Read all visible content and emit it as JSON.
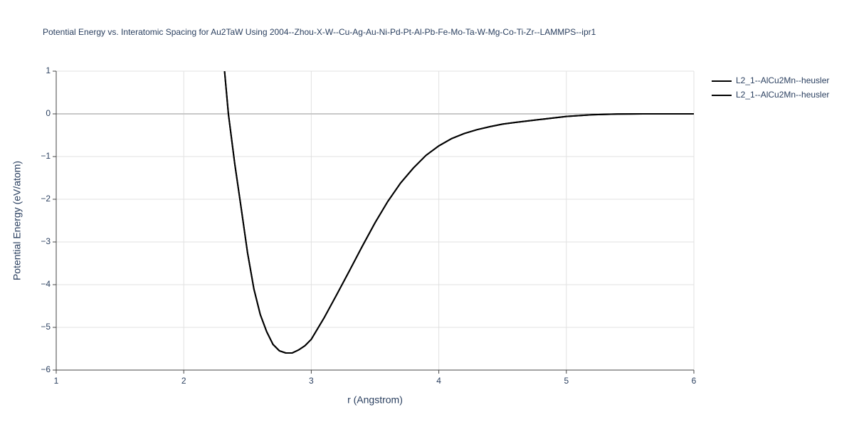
{
  "chart_data": {
    "type": "line",
    "title": "Potential Energy vs. Interatomic Spacing for Au2TaW Using 2004--Zhou-X-W--Cu-Ag-Au-Ni-Pd-Pt-Al-Pb-Fe-Mo-Ta-W-Mg-Co-Ti-Zr--LAMMPS--ipr1",
    "x_label": "r (Angstrom)",
    "y_label": "Potential Energy (eV/atom)",
    "x": [
      2.32,
      2.35,
      2.4,
      2.45,
      2.5,
      2.55,
      2.6,
      2.65,
      2.7,
      2.75,
      2.8,
      2.85,
      2.9,
      2.95,
      3.0,
      3.1,
      3.2,
      3.3,
      3.4,
      3.5,
      3.6,
      3.7,
      3.8,
      3.9,
      4.0,
      4.1,
      4.2,
      4.3,
      4.4,
      4.5,
      4.6,
      4.8,
      5.0,
      5.2,
      5.4,
      5.6,
      5.8,
      6.0
    ],
    "series": [
      {
        "name": "L2_1--AlCu2Mn--heusler",
        "color": "#000000",
        "values": [
          1.0,
          0.0,
          -1.17,
          -2.2,
          -3.25,
          -4.1,
          -4.7,
          -5.1,
          -5.4,
          -5.55,
          -5.6,
          -5.6,
          -5.53,
          -5.43,
          -5.28,
          -4.78,
          -4.23,
          -3.67,
          -3.1,
          -2.55,
          -2.05,
          -1.62,
          -1.27,
          -0.97,
          -0.75,
          -0.58,
          -0.46,
          -0.37,
          -0.3,
          -0.24,
          -0.2,
          -0.13,
          -0.06,
          -0.02,
          -0.005,
          0,
          0,
          0
        ]
      },
      {
        "name": "L2_1--AlCu2Mn--heusler",
        "color": "#000000",
        "values": [
          1.0,
          0.0,
          -1.17,
          -2.2,
          -3.25,
          -4.1,
          -4.7,
          -5.1,
          -5.4,
          -5.55,
          -5.6,
          -5.6,
          -5.53,
          -5.43,
          -5.28,
          -4.78,
          -4.23,
          -3.67,
          -3.1,
          -2.55,
          -2.05,
          -1.62,
          -1.27,
          -0.97,
          -0.75,
          -0.58,
          -0.46,
          -0.37,
          -0.3,
          -0.24,
          -0.2,
          -0.13,
          -0.06,
          -0.02,
          -0.005,
          0,
          0,
          0
        ]
      }
    ],
    "xlim": [
      1,
      6
    ],
    "ylim": [
      -6,
      1
    ],
    "xticks": [
      1,
      2,
      3,
      4,
      5,
      6
    ],
    "yticks": [
      1,
      0,
      {
        "value": -1,
        "label": "−1"
      },
      {
        "value": -2,
        "label": "−2"
      },
      {
        "value": -3,
        "label": "−3"
      },
      {
        "value": -4,
        "label": "−4"
      },
      {
        "value": -5,
        "label": "−5"
      },
      {
        "value": -6,
        "label": "−6"
      }
    ],
    "grid": true
  }
}
